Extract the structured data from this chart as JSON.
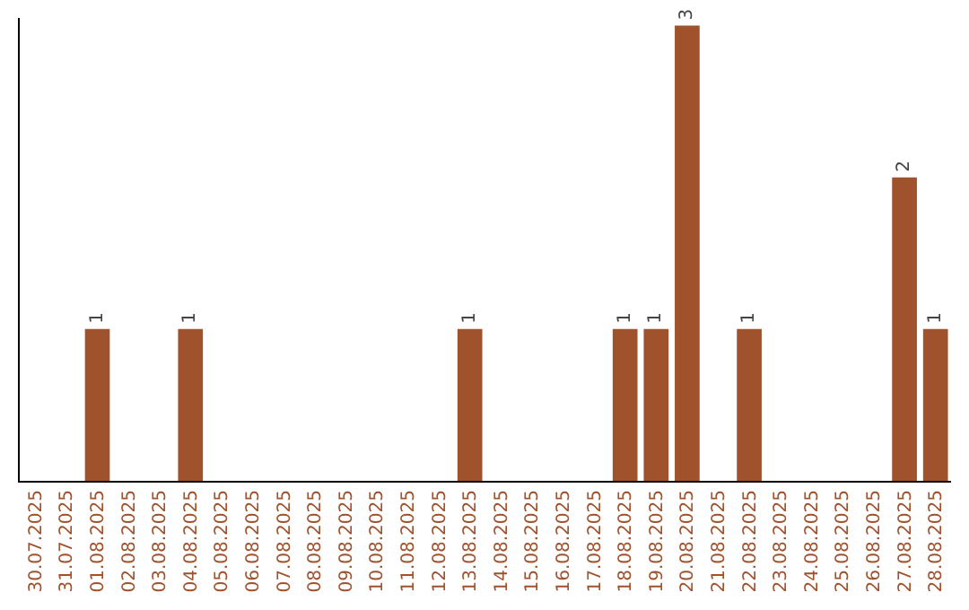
{
  "chart_data": {
    "type": "bar",
    "categories": [
      "30.07.2025",
      "31.07.2025",
      "01.08.2025",
      "02.08.2025",
      "03.08.2025",
      "04.08.2025",
      "05.08.2025",
      "06.08.2025",
      "07.08.2025",
      "08.08.2025",
      "09.08.2025",
      "10.08.2025",
      "11.08.2025",
      "12.08.2025",
      "13.08.2025",
      "14.08.2025",
      "15.08.2025",
      "16.08.2025",
      "17.08.2025",
      "18.08.2025",
      "19.08.2025",
      "20.08.2025",
      "21.08.2025",
      "22.08.2025",
      "23.08.2025",
      "24.08.2025",
      "25.08.2025",
      "26.08.2025",
      "27.08.2025",
      "28.08.2025"
    ],
    "values": [
      0,
      0,
      1,
      0,
      0,
      1,
      0,
      0,
      0,
      0,
      0,
      0,
      0,
      0,
      1,
      0,
      0,
      0,
      0,
      1,
      1,
      3,
      0,
      1,
      0,
      0,
      0,
      0,
      2,
      1
    ],
    "value_labels": [
      null,
      null,
      "1",
      null,
      null,
      "1",
      null,
      null,
      null,
      null,
      null,
      null,
      null,
      null,
      "1",
      null,
      null,
      null,
      null,
      "1",
      "1",
      "3",
      null,
      "1",
      null,
      null,
      null,
      null,
      "2",
      "1"
    ],
    "color": "#a0522d",
    "ylim": [
      0,
      3.05
    ],
    "tick_labels": "x",
    "grid": false,
    "legend": false
  }
}
